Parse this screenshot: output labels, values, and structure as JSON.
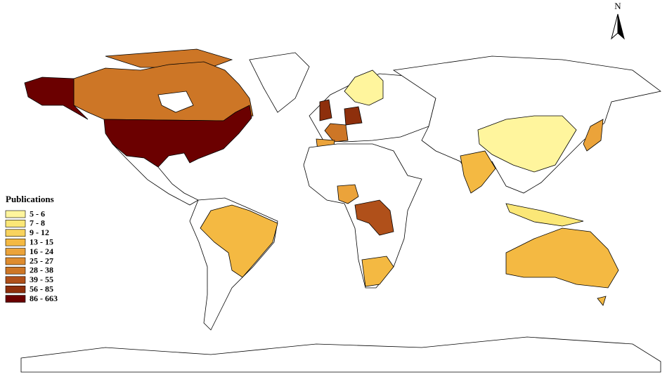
{
  "north_label": "N",
  "legend": {
    "title": "Publications",
    "items": [
      {
        "label": "5 - 6",
        "color": "#fff59d"
      },
      {
        "label": "7 - 8",
        "color": "#fbe777"
      },
      {
        "label": "9 - 12",
        "color": "#f8d35e"
      },
      {
        "label": "13 - 15",
        "color": "#f4b942"
      },
      {
        "label": "16 - 24",
        "color": "#eba33a"
      },
      {
        "label": "25 - 27",
        "color": "#de8c2f"
      },
      {
        "label": "28 - 38",
        "color": "#cd7626"
      },
      {
        "label": "39 - 55",
        "color": "#b0501a"
      },
      {
        "label": "56 - 85",
        "color": "#8e2f0c"
      },
      {
        "label": "86 - 663",
        "color": "#6b0000"
      }
    ]
  }
}
